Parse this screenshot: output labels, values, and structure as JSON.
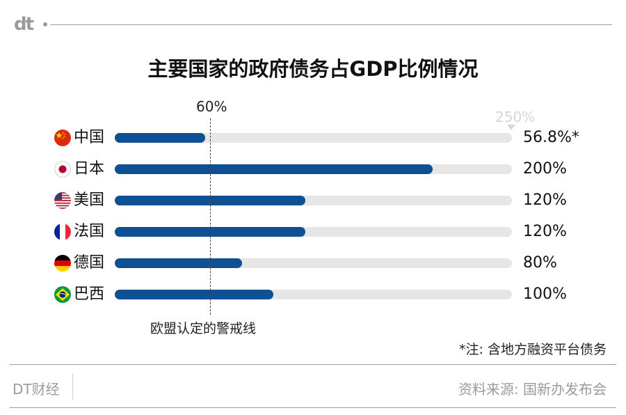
{
  "header": {
    "logo": "dt"
  },
  "footer": {
    "brand": "DT财经",
    "source": "资料来源: 国新办发布会"
  },
  "chart_data": {
    "type": "bar",
    "orientation": "horizontal",
    "title": "主要国家的政府债务占GDP比例情况",
    "categories": [
      "中国",
      "日本",
      "美国",
      "法国",
      "德国",
      "巴西"
    ],
    "values": [
      56.8,
      200,
      120,
      120,
      80,
      100
    ],
    "value_labels": [
      "56.8%*",
      "200%",
      "120%",
      "120%",
      "80%",
      "100%"
    ],
    "xlim": [
      0,
      250
    ],
    "max_label": "250%",
    "reference_line": {
      "value": 60,
      "label": "60%",
      "caption": "欧盟认定的警戒线"
    },
    "note": "*注: 含地方融资平台债务",
    "grid": false,
    "colors": {
      "bar": "#0f4f93",
      "track": "#e6e6e6"
    },
    "flags": [
      "china-flag-icon",
      "japan-flag-icon",
      "usa-flag-icon",
      "france-flag-icon",
      "germany-flag-icon",
      "brazil-flag-icon"
    ]
  }
}
